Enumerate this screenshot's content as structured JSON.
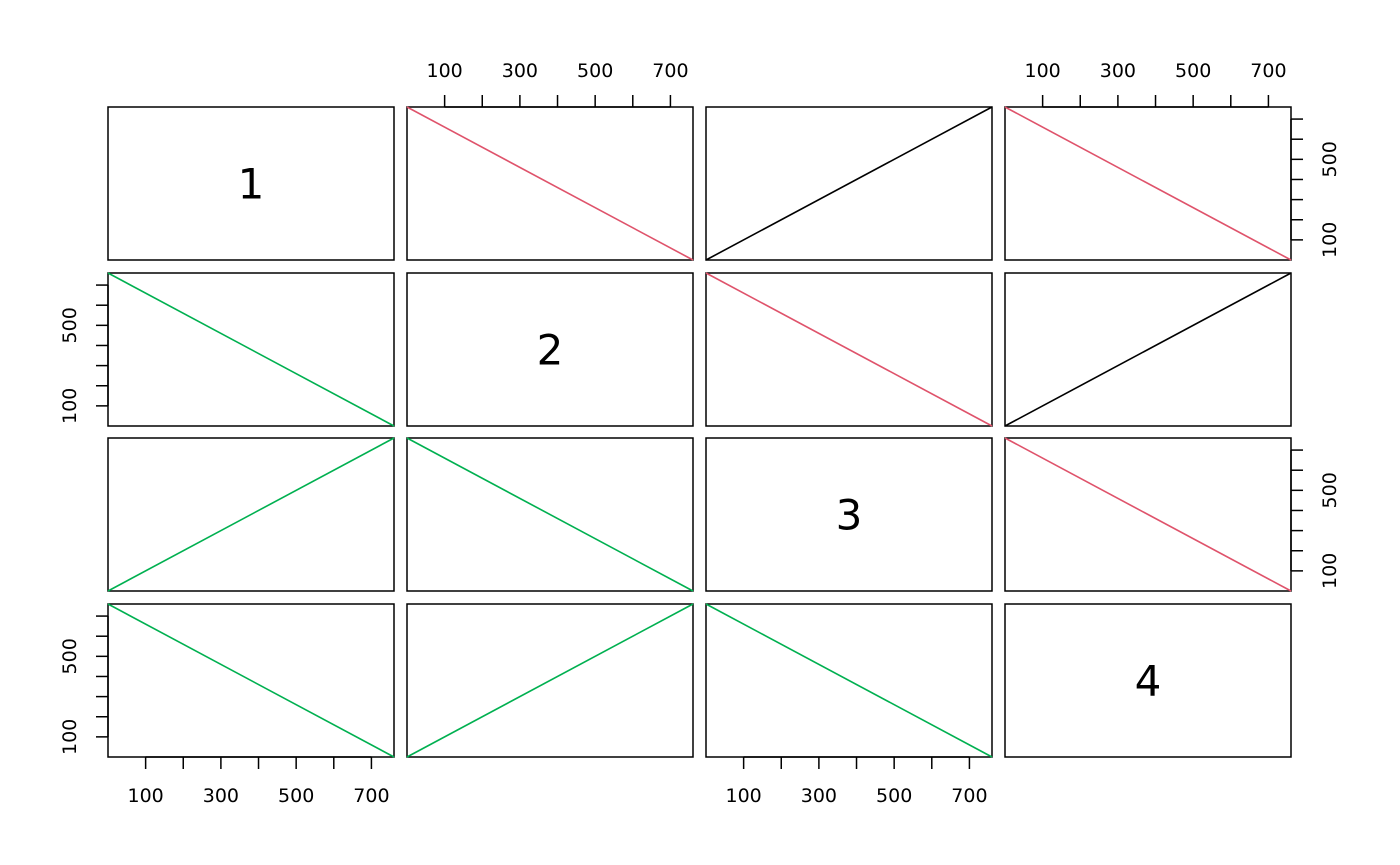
{
  "chart_data": {
    "type": "scatter",
    "layout": "pairs-matrix",
    "variables": [
      "1",
      "2",
      "3",
      "4"
    ],
    "axis_range": [
      0,
      760
    ],
    "tick_values": [
      100,
      200,
      300,
      400,
      500,
      600,
      700
    ],
    "tick_labels": [
      "100",
      "300",
      "500",
      "700"
    ],
    "colors": {
      "black": "#000000",
      "red": "#DF536B",
      "green": "#00B050"
    },
    "panels": [
      {
        "row": 0,
        "col": 1,
        "color": "red",
        "x": [
          0,
          760
        ],
        "y": [
          760,
          0
        ]
      },
      {
        "row": 0,
        "col": 2,
        "color": "black",
        "x": [
          0,
          760
        ],
        "y": [
          0,
          760
        ]
      },
      {
        "row": 0,
        "col": 3,
        "color": "red",
        "x": [
          0,
          760
        ],
        "y": [
          760,
          0
        ]
      },
      {
        "row": 1,
        "col": 0,
        "color": "green",
        "x": [
          0,
          760
        ],
        "y": [
          760,
          0
        ]
      },
      {
        "row": 1,
        "col": 2,
        "color": "red",
        "x": [
          0,
          760
        ],
        "y": [
          760,
          0
        ]
      },
      {
        "row": 1,
        "col": 3,
        "color": "black",
        "x": [
          0,
          760
        ],
        "y": [
          0,
          760
        ]
      },
      {
        "row": 2,
        "col": 0,
        "color": "green",
        "x": [
          0,
          760
        ],
        "y": [
          0,
          760
        ]
      },
      {
        "row": 2,
        "col": 1,
        "color": "green",
        "x": [
          0,
          760
        ],
        "y": [
          760,
          0
        ]
      },
      {
        "row": 2,
        "col": 3,
        "color": "red",
        "x": [
          0,
          760
        ],
        "y": [
          760,
          0
        ]
      },
      {
        "row": 3,
        "col": 0,
        "color": "green",
        "x": [
          0,
          760
        ],
        "y": [
          760,
          0
        ]
      },
      {
        "row": 3,
        "col": 1,
        "color": "green",
        "x": [
          0,
          760
        ],
        "y": [
          0,
          760
        ]
      },
      {
        "row": 3,
        "col": 2,
        "color": "green",
        "x": [
          0,
          760
        ],
        "y": [
          760,
          0
        ]
      }
    ],
    "axes_top": [
      1,
      3
    ],
    "axes_bottom": [
      0,
      2
    ],
    "axes_left": [
      1,
      3
    ],
    "axes_right": [
      0,
      2
    ],
    "grid": false,
    "legend": "none"
  }
}
